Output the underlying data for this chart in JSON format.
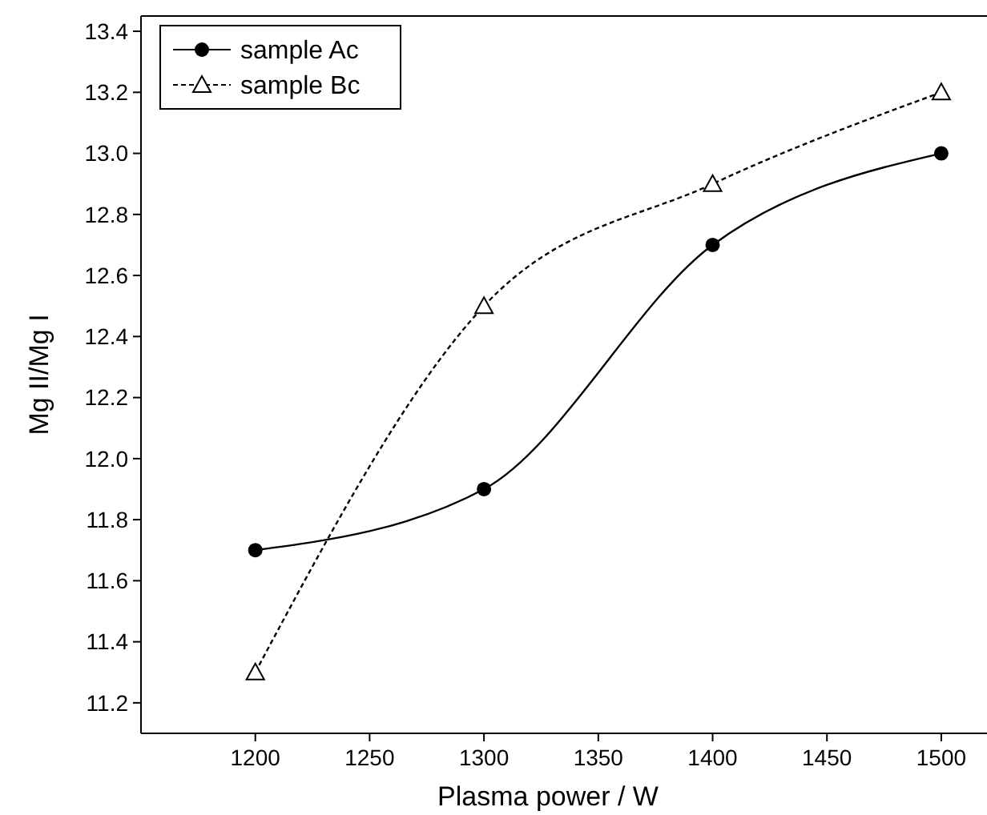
{
  "chart_data": {
    "type": "line",
    "xlabel": "Plasma power / W",
    "ylabel": "Mg II/Mg I",
    "x": [
      1200,
      1300,
      1400,
      1500
    ],
    "series": [
      {
        "name": "sample Ac",
        "color": "#000000",
        "values": [
          11.7,
          11.9,
          12.7,
          13.0
        ],
        "marker": "circle",
        "line_style": "solid"
      },
      {
        "name": "sample Bc",
        "color": "#000000",
        "values": [
          11.3,
          12.5,
          12.9,
          13.2
        ],
        "marker": "triangle",
        "line_style": "dashed"
      }
    ],
    "xlim": [
      1150,
      1520
    ],
    "xticks": [
      1200,
      1250,
      1300,
      1350,
      1400,
      1450,
      1500
    ],
    "ylim": [
      11.1,
      13.45
    ],
    "yticks": [
      11.2,
      11.4,
      11.6,
      11.8,
      {
        "value": 12,
        "label": "12.0"
      },
      12.2,
      12.4,
      12.6,
      12.8,
      {
        "value": 13,
        "label": "13.0"
      },
      13.2,
      13.4
    ],
    "grid": false,
    "legend": "top left"
  }
}
